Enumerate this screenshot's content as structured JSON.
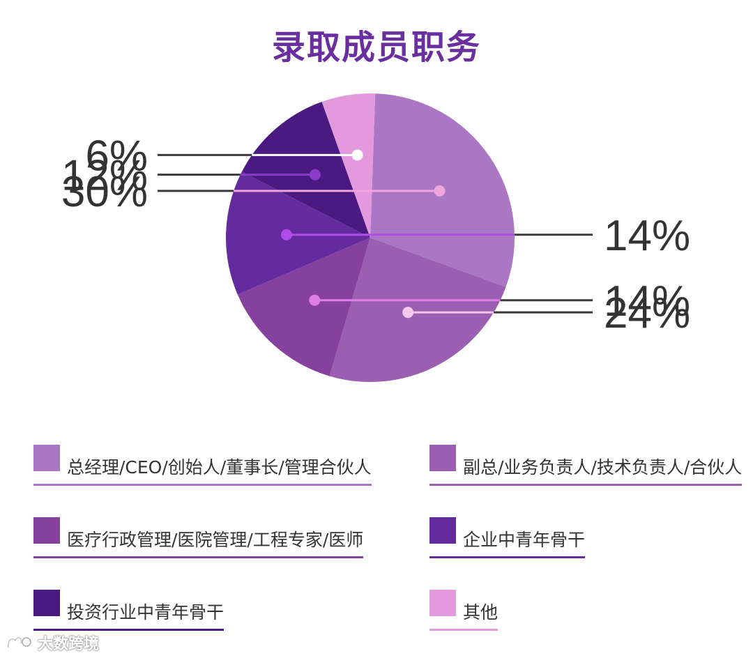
{
  "chart_data": {
    "type": "pie",
    "title": "录取成员职务",
    "slices": [
      {
        "label": "总经理/CEO/创始人/董事长/管理合伙人",
        "value": 30,
        "display": "30%",
        "color": "#ab77c4",
        "dot": "#f0a5dc",
        "side": "left"
      },
      {
        "label": "副总/业务负责人/技术负责人/合伙人",
        "value": 24,
        "display": "24%",
        "color": "#9a5fb0",
        "dot": "#f5c8ec",
        "side": "right"
      },
      {
        "label": "医疗行政管理/医院管理/工程专家/医师",
        "value": 14,
        "display": "14%",
        "color": "#86419e",
        "dot": "#e07ee8",
        "side": "right"
      },
      {
        "label": "企业中青年骨干",
        "value": 14,
        "display": "14%",
        "color": "#632b9e",
        "dot": "#b04de8",
        "side": "right"
      },
      {
        "label": "投资行业中青年骨干",
        "value": 12,
        "display": "12%",
        "color": "#4a1a80",
        "dot": "#8a3cc8",
        "side": "left"
      },
      {
        "label": "其他",
        "value": 6,
        "display": "6%",
        "color": "#e399dd",
        "dot": "#ffffff",
        "side": "left"
      }
    ],
    "legend_placement": "bottom"
  },
  "watermark": {
    "text": "大数跨境",
    "icon": "brand-logo-icon"
  }
}
